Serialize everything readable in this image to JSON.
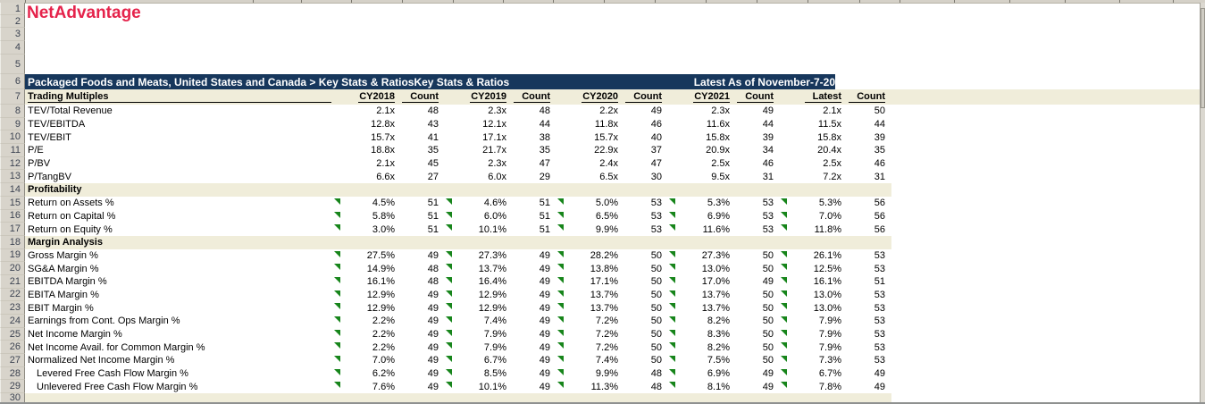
{
  "app": {
    "title": "NetAdvantage"
  },
  "banner": {
    "left": "Packaged Foods and Meats, United States and Canada > Key Stats & RatiosKey Stats & Ratios",
    "right": "Latest As of November-7-20"
  },
  "columns": [
    "Trading Multiples",
    "CY2018",
    "Count",
    "CY2019",
    "Count",
    "CY2020",
    "Count",
    "CY2021",
    "Count",
    "Latest",
    "Count"
  ],
  "row_numbers": [
    "1",
    "2",
    "3",
    "4",
    "5",
    "6",
    "7",
    "8",
    "9",
    "10",
    "11",
    "12",
    "13",
    "14",
    "15",
    "16",
    "17",
    "18",
    "19",
    "20",
    "21",
    "22",
    "23",
    "24",
    "25",
    "26",
    "27",
    "28",
    "29",
    "30"
  ],
  "rows": [
    {
      "label": "TEV/Total Revenue",
      "flag": false,
      "indent": false,
      "values": [
        "2.1x",
        "48",
        "2.3x",
        "48",
        "2.2x",
        "49",
        "2.3x",
        "49",
        "2.1x",
        "50"
      ]
    },
    {
      "label": "TEV/EBITDA",
      "flag": false,
      "indent": false,
      "values": [
        "12.8x",
        "43",
        "12.1x",
        "44",
        "11.8x",
        "46",
        "11.6x",
        "44",
        "11.5x",
        "44"
      ]
    },
    {
      "label": "TEV/EBIT",
      "flag": false,
      "indent": false,
      "values": [
        "15.7x",
        "41",
        "17.1x",
        "38",
        "15.7x",
        "40",
        "15.8x",
        "39",
        "15.8x",
        "39"
      ]
    },
    {
      "label": "P/E",
      "flag": false,
      "indent": false,
      "values": [
        "18.8x",
        "35",
        "21.7x",
        "35",
        "22.9x",
        "37",
        "20.9x",
        "34",
        "20.4x",
        "35"
      ]
    },
    {
      "label": "P/BV",
      "flag": false,
      "indent": false,
      "values": [
        "2.1x",
        "45",
        "2.3x",
        "47",
        "2.4x",
        "47",
        "2.5x",
        "46",
        "2.5x",
        "46"
      ]
    },
    {
      "label": "P/TangBV",
      "flag": false,
      "indent": false,
      "values": [
        "6.6x",
        "27",
        "6.0x",
        "29",
        "6.5x",
        "30",
        "9.5x",
        "31",
        "7.2x",
        "31"
      ]
    },
    {
      "section": "Profitability"
    },
    {
      "label": "Return on Assets %",
      "flag": true,
      "indent": false,
      "values": [
        "4.5%",
        "51",
        "4.6%",
        "51",
        "5.0%",
        "53",
        "5.3%",
        "53",
        "5.3%",
        "56"
      ]
    },
    {
      "label": "Return on Capital %",
      "flag": true,
      "indent": false,
      "values": [
        "5.8%",
        "51",
        "6.0%",
        "51",
        "6.5%",
        "53",
        "6.9%",
        "53",
        "7.0%",
        "56"
      ]
    },
    {
      "label": "Return on Equity %",
      "flag": true,
      "indent": false,
      "values": [
        "3.0%",
        "51",
        "10.1%",
        "51",
        "9.9%",
        "53",
        "11.6%",
        "53",
        "11.8%",
        "56"
      ]
    },
    {
      "section": "Margin Analysis"
    },
    {
      "label": "Gross Margin %",
      "flag": true,
      "indent": false,
      "values": [
        "27.5%",
        "49",
        "27.3%",
        "49",
        "28.2%",
        "50",
        "27.3%",
        "50",
        "26.1%",
        "53"
      ]
    },
    {
      "label": "SG&A Margin %",
      "flag": true,
      "indent": false,
      "values": [
        "14.9%",
        "48",
        "13.7%",
        "49",
        "13.8%",
        "50",
        "13.0%",
        "50",
        "12.5%",
        "53"
      ]
    },
    {
      "label": "EBITDA Margin %",
      "flag": true,
      "indent": false,
      "values": [
        "16.1%",
        "48",
        "16.4%",
        "49",
        "17.1%",
        "50",
        "17.0%",
        "49",
        "16.1%",
        "51"
      ]
    },
    {
      "label": "EBITA Margin %",
      "flag": true,
      "indent": false,
      "values": [
        "12.9%",
        "49",
        "12.9%",
        "49",
        "13.7%",
        "50",
        "13.7%",
        "50",
        "13.0%",
        "53"
      ]
    },
    {
      "label": "EBIT Margin %",
      "flag": true,
      "indent": false,
      "values": [
        "12.9%",
        "49",
        "12.9%",
        "49",
        "13.7%",
        "50",
        "13.7%",
        "50",
        "13.0%",
        "53"
      ]
    },
    {
      "label": "Earnings from Cont. Ops Margin %",
      "flag": true,
      "indent": false,
      "values": [
        "2.2%",
        "49",
        "7.4%",
        "49",
        "7.2%",
        "50",
        "8.2%",
        "50",
        "7.9%",
        "53"
      ]
    },
    {
      "label": "Net Income Margin %",
      "flag": true,
      "indent": false,
      "values": [
        "2.2%",
        "49",
        "7.9%",
        "49",
        "7.2%",
        "50",
        "8.3%",
        "50",
        "7.9%",
        "53"
      ]
    },
    {
      "label": "Net Income Avail. for Common Margin %",
      "flag": true,
      "indent": false,
      "values": [
        "2.2%",
        "49",
        "7.9%",
        "49",
        "7.2%",
        "50",
        "8.2%",
        "50",
        "7.9%",
        "53"
      ]
    },
    {
      "label": "Normalized Net Income Margin %",
      "flag": true,
      "indent": false,
      "values": [
        "7.0%",
        "49",
        "6.7%",
        "49",
        "7.4%",
        "50",
        "7.5%",
        "50",
        "7.3%",
        "53"
      ]
    },
    {
      "label": "Levered Free Cash Flow Margin %",
      "flag": true,
      "indent": true,
      "values": [
        "6.2%",
        "49",
        "8.5%",
        "49",
        "9.9%",
        "48",
        "6.9%",
        "49",
        "6.7%",
        "49"
      ]
    },
    {
      "label": "Unlevered Free Cash Flow Margin %",
      "flag": true,
      "indent": true,
      "values": [
        "7.6%",
        "49",
        "10.1%",
        "49",
        "11.3%",
        "48",
        "8.1%",
        "49",
        "7.8%",
        "49"
      ]
    }
  ],
  "colors": {
    "navy": "#17375c",
    "cream": "#f0edda",
    "red": "#e5234b",
    "green": "#17851b"
  },
  "icons": {
    "flag": "green-corner-flag-icon"
  }
}
